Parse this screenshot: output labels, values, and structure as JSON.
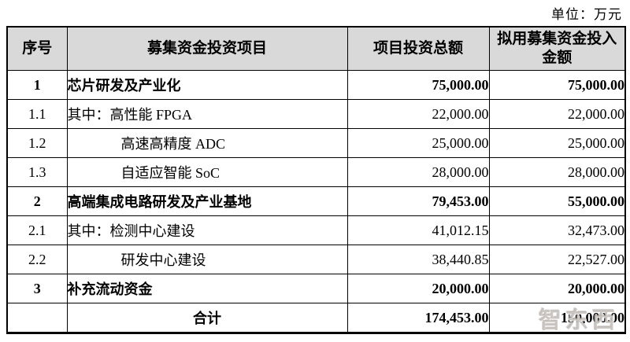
{
  "unit_label": "单位：万元",
  "table": {
    "headers": [
      "序号",
      "募集资金投资项目",
      "项目投资总额",
      "拟用募集资金投入金额"
    ],
    "rows": [
      {
        "no": "1",
        "name": "芯片研发及产业化",
        "total": "75,000.00",
        "raised": "75,000.00",
        "bold": true,
        "indent": "none",
        "center": false
      },
      {
        "no": "1.1",
        "name": "其中：高性能 FPGA",
        "total": "22,000.00",
        "raised": "22,000.00",
        "bold": false,
        "indent": "none",
        "center": false
      },
      {
        "no": "1.2",
        "name": "高速高精度 ADC",
        "total": "25,000.00",
        "raised": "25,000.00",
        "bold": false,
        "indent": "sub",
        "center": false
      },
      {
        "no": "1.3",
        "name": "自适应智能 SoC",
        "total": "28,000.00",
        "raised": "28,000.00",
        "bold": false,
        "indent": "sub",
        "center": false
      },
      {
        "no": "2",
        "name": "高端集成电路研发及产业基地",
        "total": "79,453.00",
        "raised": "55,000.00",
        "bold": true,
        "indent": "none",
        "center": false
      },
      {
        "no": "2.1",
        "name": "其中：检测中心建设",
        "total": "41,012.15",
        "raised": "32,473.00",
        "bold": false,
        "indent": "none",
        "center": false
      },
      {
        "no": "2.2",
        "name": "研发中心建设",
        "total": "38,440.85",
        "raised": "22,527.00",
        "bold": false,
        "indent": "sub",
        "center": false
      },
      {
        "no": "3",
        "name": "补充流动资金",
        "total": "20,000.00",
        "raised": "20,000.00",
        "bold": true,
        "indent": "none",
        "center": false
      },
      {
        "no": "",
        "name": "合计",
        "total": "174,453.00",
        "raised": "150,000.00",
        "bold": true,
        "indent": "none",
        "center": true
      }
    ]
  },
  "watermark": {
    "text": "智东西"
  },
  "colors": {
    "header_bg": "#d9d9d9",
    "border": "#000000",
    "text": "#000000",
    "watermark": "#b2aba4",
    "background": "#ffffff"
  }
}
